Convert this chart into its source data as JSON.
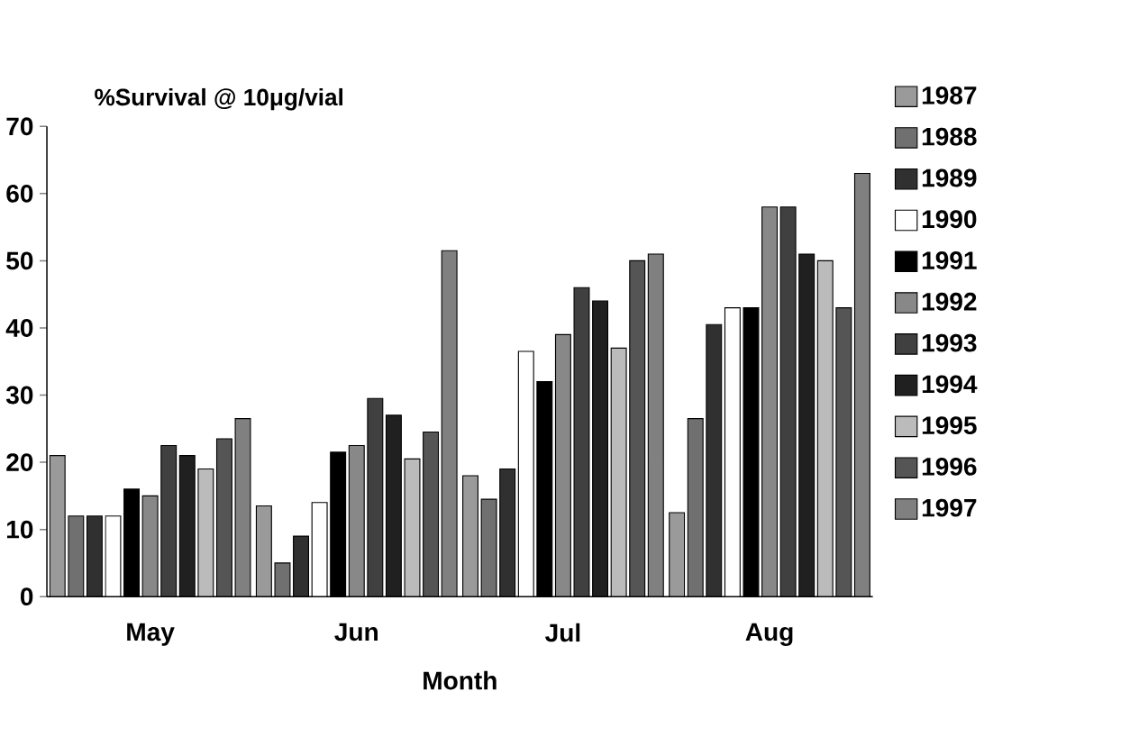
{
  "chart_data": {
    "type": "bar",
    "title": "%Survival @ 10μg/vial",
    "xlabel": "Month",
    "categories": [
      "May",
      "Jun",
      "Jul",
      "Aug"
    ],
    "series": [
      {
        "name": "1987",
        "color": "#9a9a9a",
        "values": [
          21,
          13.5,
          18,
          12.5
        ]
      },
      {
        "name": "1988",
        "color": "#707070",
        "values": [
          12,
          5,
          14.5,
          26.5
        ]
      },
      {
        "name": "1989",
        "color": "#303030",
        "values": [
          12,
          9,
          19,
          40.5
        ]
      },
      {
        "name": "1990",
        "color": "#ffffff",
        "values": [
          12,
          14,
          36.5,
          43
        ]
      },
      {
        "name": "1991",
        "color": "#000000",
        "values": [
          16,
          21.5,
          32,
          43
        ]
      },
      {
        "name": "1992",
        "color": "#888888",
        "values": [
          15,
          22.5,
          39,
          58
        ]
      },
      {
        "name": "1993",
        "color": "#404040",
        "values": [
          22.5,
          29.5,
          46,
          58
        ]
      },
      {
        "name": "1994",
        "color": "#202020",
        "values": [
          21,
          27,
          44,
          51
        ]
      },
      {
        "name": "1995",
        "color": "#bbbbbb",
        "values": [
          19,
          20.5,
          37,
          50
        ]
      },
      {
        "name": "1996",
        "color": "#555555",
        "values": [
          23.5,
          24.5,
          50,
          43
        ]
      },
      {
        "name": "1997",
        "color": "#808080",
        "values": [
          26.5,
          51.5,
          51,
          63
        ]
      }
    ],
    "ylim": [
      0,
      70
    ],
    "yticks": [
      0,
      10,
      20,
      30,
      40,
      50,
      60,
      70
    ],
    "legend": "right",
    "grid": false
  }
}
